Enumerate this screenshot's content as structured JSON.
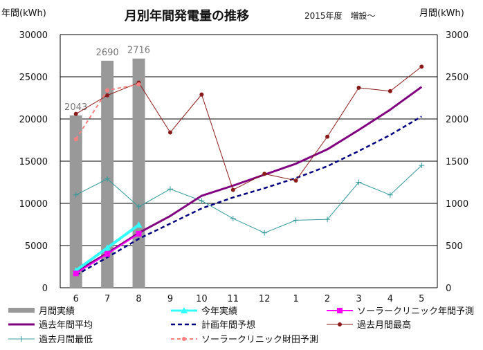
{
  "chart_data": {
    "type": "bar+line",
    "title": "月別年間発電量の推移",
    "subtitle": "2015年度　増設～",
    "left_axis_label": "年間(kWh)",
    "right_axis_label": "月間(kWh)",
    "categories": [
      "6",
      "7",
      "8",
      "9",
      "10",
      "11",
      "12",
      "1",
      "2",
      "3",
      "4",
      "5"
    ],
    "left_ylim": [
      0,
      30000
    ],
    "left_ticks": [
      "0",
      "5000",
      "10000",
      "15000",
      "20000",
      "25000",
      "30000"
    ],
    "right_ylim": [
      0,
      3000
    ],
    "right_ticks": [
      "0",
      "500",
      "1000",
      "1500",
      "2000",
      "2500",
      "3000"
    ],
    "grid": true,
    "legend_position": "bottom",
    "colors": {
      "bar": "#999999",
      "this_year": "#33FFFF",
      "clinic_annual": "#FF00FF",
      "past_avg": "#800080",
      "plan": "#000080",
      "past_max": "#8B1A1A",
      "past_min": "#339999",
      "clinic_zaita": "#FF8080"
    },
    "series": [
      {
        "key": "monthly_actual",
        "name": "月間実績",
        "axis": "right",
        "type": "bar",
        "values": [
          2043,
          2690,
          2716,
          null,
          null,
          null,
          null,
          null,
          null,
          null,
          null,
          null
        ],
        "labels": [
          "2043",
          "2690",
          "2716"
        ]
      },
      {
        "key": "this_year",
        "name": "今年実績",
        "axis": "left",
        "type": "line",
        "marker": "triangle",
        "values": [
          2043,
          4733,
          7449,
          null,
          null,
          null,
          null,
          null,
          null,
          null,
          null,
          null
        ]
      },
      {
        "key": "clinic_annual",
        "name": "ソーラークリニック年間予測",
        "axis": "left",
        "type": "line",
        "marker": "square",
        "values": [
          1700,
          4000,
          6400,
          null,
          null,
          null,
          null,
          null,
          null,
          null,
          null,
          null
        ]
      },
      {
        "key": "past_avg",
        "name": "過去年間平均",
        "axis": "left",
        "type": "line",
        "marker": "none",
        "values": [
          1900,
          4100,
          6500,
          8500,
          10900,
          12100,
          13400,
          14700,
          16400,
          18700,
          21100,
          23800
        ]
      },
      {
        "key": "plan",
        "name": "計画年間予想",
        "axis": "left",
        "type": "line",
        "dash": true,
        "marker": "none",
        "values": [
          1500,
          3600,
          5800,
          7600,
          9400,
          10700,
          11800,
          13000,
          14400,
          16200,
          18100,
          20300
        ]
      },
      {
        "key": "past_max",
        "name": "過去月間最高",
        "axis": "right",
        "type": "line",
        "marker": "dot",
        "values": [
          2060,
          2280,
          2430,
          1840,
          2290,
          1160,
          1350,
          1270,
          1790,
          2370,
          2330,
          2620
        ]
      },
      {
        "key": "past_min",
        "name": "過去月間最低",
        "axis": "right",
        "type": "line",
        "marker": "plus",
        "values": [
          1100,
          1290,
          960,
          1170,
          1030,
          820,
          650,
          800,
          810,
          1250,
          1100,
          1450
        ]
      },
      {
        "key": "clinic_zaita",
        "name": "ソーラークリニック財田予測",
        "axis": "right",
        "type": "line",
        "dash": true,
        "marker": "dot",
        "values": [
          1760,
          2340,
          2410,
          null,
          null,
          null,
          null,
          null,
          null,
          null,
          null,
          null
        ]
      }
    ]
  }
}
